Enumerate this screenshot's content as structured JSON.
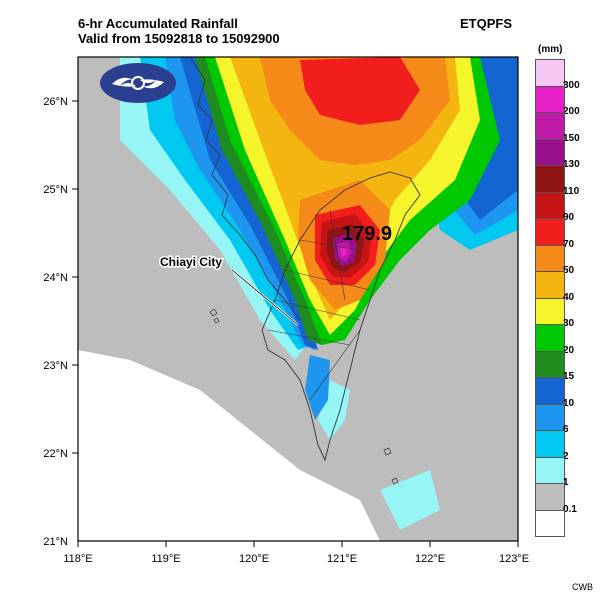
{
  "title_line1": "6-hr Accumulated Rainfall",
  "title_line2": "Valid from 15092818 to 15092900",
  "product": "ETQPFS",
  "credit": "CWB",
  "legend": {
    "unit": "(mm)",
    "bins": [
      {
        "label": "300",
        "color": "#f7c6f3"
      },
      {
        "label": "200",
        "color": "#e520c8"
      },
      {
        "label": "150",
        "color": "#c01aa8"
      },
      {
        "label": "130",
        "color": "#990f8e"
      },
      {
        "label": "110",
        "color": "#8e1416"
      },
      {
        "label": "90",
        "color": "#c61414"
      },
      {
        "label": "70",
        "color": "#f21d1d"
      },
      {
        "label": "50",
        "color": "#f58a19"
      },
      {
        "label": "40",
        "color": "#f5b511"
      },
      {
        "label": "30",
        "color": "#f6f52c"
      },
      {
        "label": "20",
        "color": "#00c800"
      },
      {
        "label": "15",
        "color": "#1e8c1e"
      },
      {
        "label": "10",
        "color": "#1464d2"
      },
      {
        "label": "6",
        "color": "#1e96f0"
      },
      {
        "label": "2",
        "color": "#00c8f0"
      },
      {
        "label": "1",
        "color": "#96f5f5"
      },
      {
        "label": "0.1",
        "color": "#bdbdbd"
      },
      {
        "label": "",
        "color": "#ffffff"
      }
    ]
  },
  "axes": {
    "lon_ticks": [
      "118°E",
      "119°E",
      "120°E",
      "121°E",
      "122°E",
      "123°E"
    ],
    "lat_ticks": [
      "26°N",
      "25°N",
      "24°N",
      "23°N",
      "22°N",
      "21°N"
    ]
  },
  "annotations": {
    "max_value": "179.9",
    "city_label": "Chiayi City"
  },
  "colors": {
    "land_outline": "#333333",
    "frame": "#000000"
  },
  "logo": "cwb-logo"
}
